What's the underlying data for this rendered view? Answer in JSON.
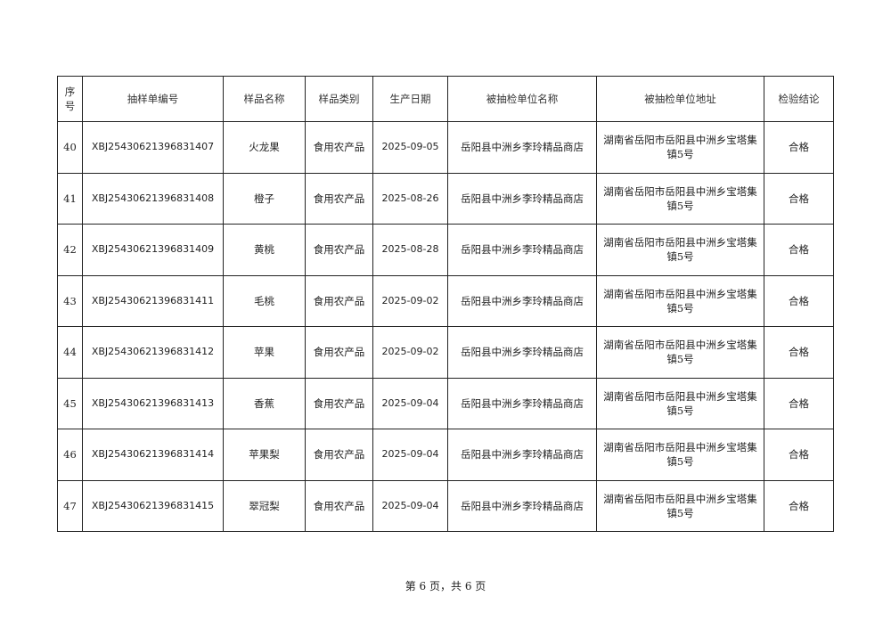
{
  "table": {
    "headers": [
      "序号",
      "抽样单编号",
      "样品名称",
      "样品类别",
      "生产日期",
      "被抽检单位名称",
      "被抽检单位地址",
      "检验结论"
    ],
    "rows": [
      {
        "no": "40",
        "code": "XBJ25430621396831407",
        "name": "火龙果",
        "category": "食用农产品",
        "date": "2025-09-05",
        "unit": "岳阳县中洲乡李玲精品商店",
        "address": "湖南省岳阳市岳阳县中洲乡宝塔集镇5号",
        "result": "合格"
      },
      {
        "no": "41",
        "code": "XBJ25430621396831408",
        "name": "橙子",
        "category": "食用农产品",
        "date": "2025-08-26",
        "unit": "岳阳县中洲乡李玲精品商店",
        "address": "湖南省岳阳市岳阳县中洲乡宝塔集镇5号",
        "result": "合格"
      },
      {
        "no": "42",
        "code": "XBJ25430621396831409",
        "name": "黄桃",
        "category": "食用农产品",
        "date": "2025-08-28",
        "unit": "岳阳县中洲乡李玲精品商店",
        "address": "湖南省岳阳市岳阳县中洲乡宝塔集镇5号",
        "result": "合格"
      },
      {
        "no": "43",
        "code": "XBJ25430621396831411",
        "name": "毛桃",
        "category": "食用农产品",
        "date": "2025-09-02",
        "unit": "岳阳县中洲乡李玲精品商店",
        "address": "湖南省岳阳市岳阳县中洲乡宝塔集镇5号",
        "result": "合格"
      },
      {
        "no": "44",
        "code": "XBJ25430621396831412",
        "name": "苹果",
        "category": "食用农产品",
        "date": "2025-09-02",
        "unit": "岳阳县中洲乡李玲精品商店",
        "address": "湖南省岳阳市岳阳县中洲乡宝塔集镇5号",
        "result": "合格"
      },
      {
        "no": "45",
        "code": "XBJ25430621396831413",
        "name": "香蕉",
        "category": "食用农产品",
        "date": "2025-09-04",
        "unit": "岳阳县中洲乡李玲精品商店",
        "address": "湖南省岳阳市岳阳县中洲乡宝塔集镇5号",
        "result": "合格"
      },
      {
        "no": "46",
        "code": "XBJ25430621396831414",
        "name": "苹果梨",
        "category": "食用农产品",
        "date": "2025-09-04",
        "unit": "岳阳县中洲乡李玲精品商店",
        "address": "湖南省岳阳市岳阳县中洲乡宝塔集镇5号",
        "result": "合格"
      },
      {
        "no": "47",
        "code": "XBJ25430621396831415",
        "name": "翠冠梨",
        "category": "食用农产品",
        "date": "2025-09-04",
        "unit": "岳阳县中洲乡李玲精品商店",
        "address": "湖南省岳阳市岳阳县中洲乡宝塔集镇5号",
        "result": "合格"
      }
    ]
  },
  "footer": {
    "page_text": "第 6 页，共 6 页"
  }
}
